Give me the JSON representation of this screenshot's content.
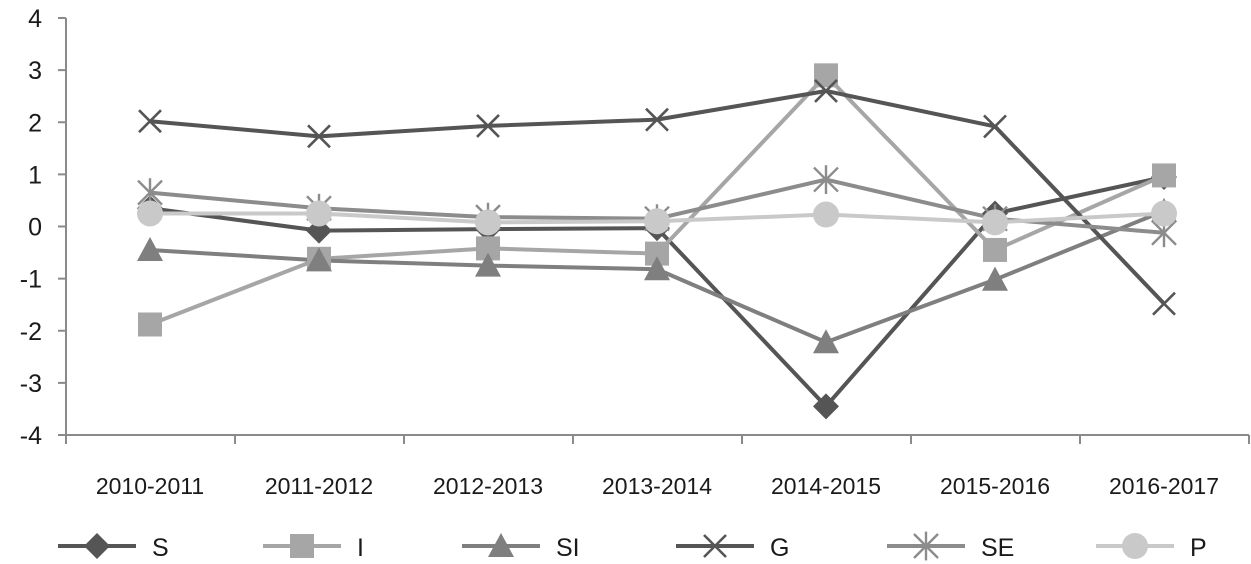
{
  "chart_data": {
    "type": "line",
    "title": "",
    "xlabel": "",
    "ylabel": "",
    "ylim": [
      -4,
      4
    ],
    "yticks": [
      4,
      3,
      2,
      1,
      0,
      -1,
      -2,
      -3,
      -4
    ],
    "grid": false,
    "legend_position": "bottom",
    "categories": [
      "2010-2011",
      "2011-2012",
      "2012-2013",
      "2013-2014",
      "2014-2015",
      "2015-2016",
      "2016-2017"
    ],
    "series": [
      {
        "name": "S",
        "marker": "diamond",
        "color": "#555555",
        "values": [
          0.35,
          -0.08,
          -0.05,
          -0.03,
          -3.45,
          0.25,
          0.95
        ]
      },
      {
        "name": "I",
        "marker": "square",
        "color": "#a6a6a6",
        "values": [
          -1.88,
          -0.62,
          -0.42,
          -0.52,
          2.9,
          -0.45,
          0.98
        ]
      },
      {
        "name": "SI",
        "marker": "triangle",
        "color": "#7f7f7f",
        "values": [
          -0.45,
          -0.65,
          -0.75,
          -0.82,
          -2.22,
          -1.02,
          0.3
        ]
      },
      {
        "name": "G",
        "marker": "x",
        "color": "#555555",
        "values": [
          2.02,
          1.73,
          1.93,
          2.05,
          2.6,
          1.92,
          -1.48
        ]
      },
      {
        "name": "SE",
        "marker": "asterisk",
        "color": "#8c8c8c",
        "values": [
          0.65,
          0.35,
          0.18,
          0.15,
          0.9,
          0.15,
          -0.12
        ]
      },
      {
        "name": "P",
        "marker": "circle",
        "color": "#c9c9c9",
        "values": [
          0.25,
          0.25,
          0.08,
          0.1,
          0.23,
          0.08,
          0.25
        ]
      }
    ]
  }
}
